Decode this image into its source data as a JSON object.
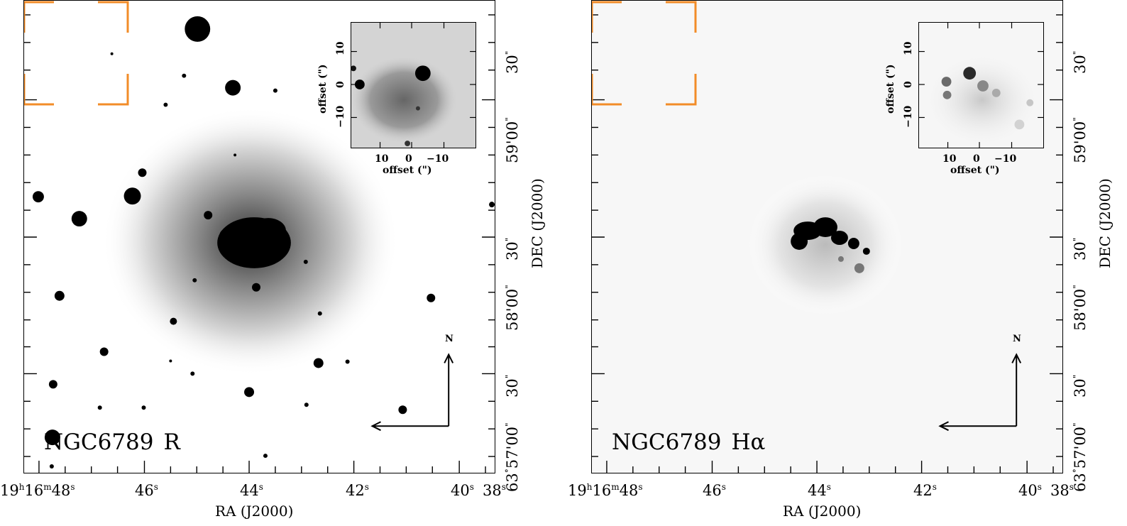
{
  "panels": [
    {
      "object": "NGC6789",
      "filter": "R",
      "ra_label": "RA (J2000)",
      "dec_label": "DEC (J2000)",
      "ra_ticks": [
        "19h16m48s",
        "46s",
        "44s",
        "42s",
        "40s",
        "38s"
      ],
      "dec_ticks": [
        "63°57'00\"",
        "30\"",
        "58'00\"",
        "30\"",
        "59'00\"",
        "30\""
      ],
      "inset": {
        "xlabel": "offset (\")",
        "ylabel": "offset (\")",
        "x_ticks": [
          "10",
          "0",
          "−10"
        ],
        "y_ticks": [
          "10",
          "0",
          "−10"
        ]
      },
      "compass": "N"
    },
    {
      "object": "NGC6789",
      "filter": "Hα",
      "ra_label": "RA (J2000)",
      "dec_label": "DEC (J2000)",
      "ra_ticks": [
        "19h16m48s",
        "46s",
        "44s",
        "42s",
        "40s",
        "38s"
      ],
      "dec_ticks": [
        "63°57'00\"",
        "30\"",
        "58'00\"",
        "30\"",
        "59'00\"",
        "30\""
      ],
      "inset": {
        "xlabel": "offset (\")",
        "ylabel": "offset (\")",
        "x_ticks": [
          "10",
          "0",
          "−10"
        ],
        "y_ticks": [
          "10",
          "0",
          "−10"
        ]
      },
      "compass": "N"
    }
  ],
  "colors": {
    "bracket": "#f28c28",
    "ink": "#000000",
    "background": "#ffffff"
  }
}
